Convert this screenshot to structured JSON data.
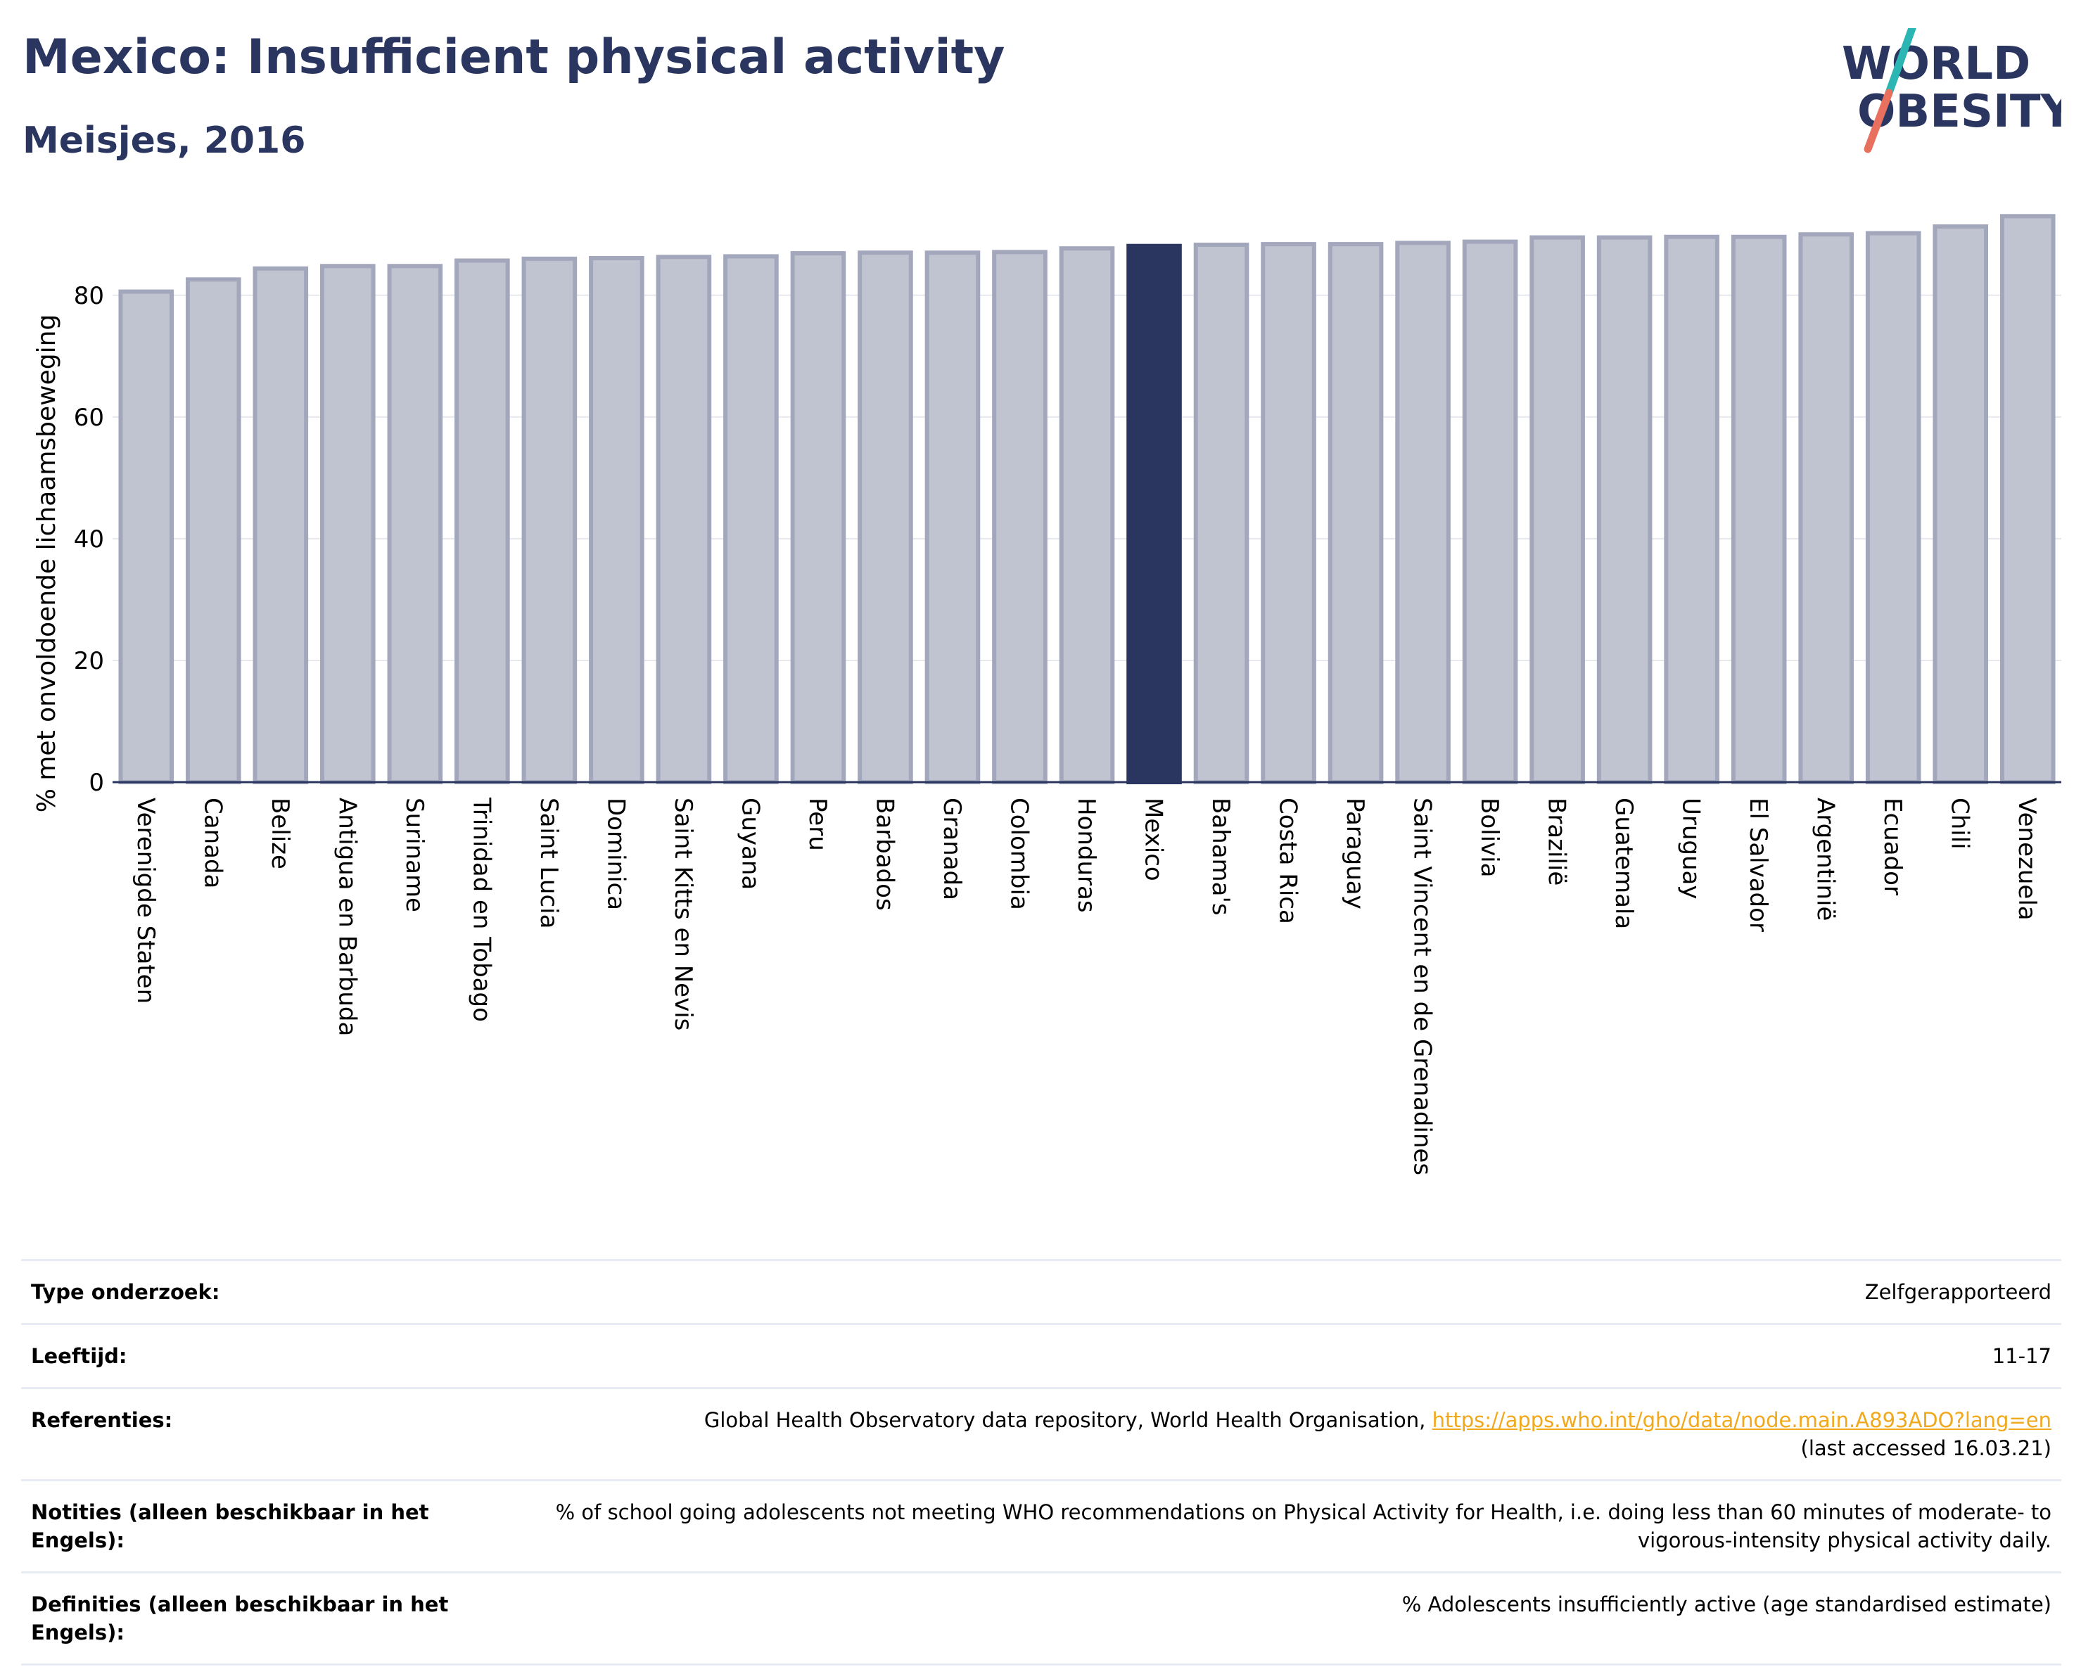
{
  "header": {
    "title": "Mexico: Insufficient physical activity",
    "subtitle": "Meisjes, 2016",
    "logo_line1": "WORLD",
    "logo_line2": "OBESITY"
  },
  "colors": {
    "highlight": "#2a3660",
    "bar_fill": "#c0c3d0",
    "bar_stroke": "#a3a7bc",
    "accent_teal": "#2bb5b3",
    "accent_coral": "#e8705f",
    "link": "#f0a81c"
  },
  "chart_data": {
    "type": "bar",
    "ylabel": "% met onvoldoende lichaamsbeweging",
    "ylim": [
      0,
      95
    ],
    "yticks": [
      0,
      20,
      40,
      60,
      80
    ],
    "grid": true,
    "highlight_category": "Mexico",
    "categories": [
      "Verenigde Staten",
      "Canada",
      "Belize",
      "Antigua en Barbuda",
      "Suriname",
      "Trinidad en Tobago",
      "Saint Lucia",
      "Dominica",
      "Saint Kitts en Nevis",
      "Guyana",
      "Peru",
      "Barbados",
      "Granada",
      "Colombia",
      "Honduras",
      "Mexico",
      "Bahama's",
      "Costa Rica",
      "Paraguay",
      "Saint Vincent en de Grenadines",
      "Bolivia",
      "Brazilië",
      "Guatemala",
      "Uruguay",
      "El Salvador",
      "Argentinië",
      "Ecuador",
      "Chili",
      "Venezuela"
    ],
    "values": [
      80.6,
      82.6,
      84.4,
      84.8,
      84.8,
      85.7,
      86.0,
      86.1,
      86.3,
      86.4,
      86.9,
      87.0,
      87.0,
      87.1,
      87.7,
      88.1,
      88.3,
      88.4,
      88.4,
      88.6,
      88.8,
      89.5,
      89.5,
      89.6,
      89.6,
      90.0,
      90.2,
      91.3,
      93.0
    ]
  },
  "info_table": {
    "rows": [
      {
        "label": "Type onderzoek:",
        "value": "Zelfgerapporteerd"
      },
      {
        "label": "Leeftijd:",
        "value": "11-17"
      },
      {
        "label": "Referenties:",
        "value": "Global Health Observatory data repository, World Health Organisation, ",
        "link": "https://apps.who.int/gho/data/node.main.A893ADO?lang=en",
        "value_after": "(last accessed 16.03.21)"
      },
      {
        "label": "Notities (alleen beschikbaar in het Engels):",
        "value": "% of school going adolescents not meeting WHO recommendations on Physical Activity for Health, i.e. doing less than 60 minutes of moderate- to vigorous-intensity physical activity daily."
      },
      {
        "label": "Definities (alleen beschikbaar in het Engels):",
        "value": "% Adolescents insufficiently active (age standardised estimate)"
      }
    ]
  }
}
